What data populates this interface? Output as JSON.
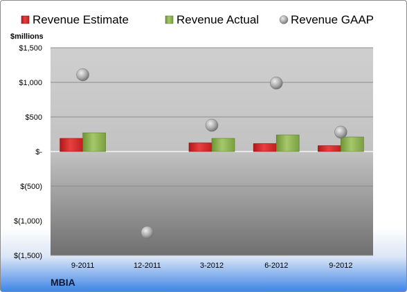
{
  "chart_data": {
    "type": "bar",
    "company": "MBIA",
    "unit_label": "$millions",
    "categories": [
      "9-2011",
      "12-2011",
      "3-2012",
      "6-2012",
      "9-2012"
    ],
    "series": [
      {
        "name": "Revenue Estimate",
        "kind": "bar",
        "color": "#d42a2a",
        "values": [
          190,
          null,
          125,
          115,
          85
        ]
      },
      {
        "name": "Revenue Actual",
        "kind": "bar",
        "color": "#8ab04a",
        "values": [
          270,
          null,
          190,
          240,
          210
        ]
      },
      {
        "name": "Revenue GAAP",
        "kind": "marker",
        "color": "#a6a6a6",
        "values": [
          1110,
          -1170,
          380,
          990,
          280
        ]
      }
    ],
    "ylim": [
      -1500,
      1500
    ],
    "yticks": [
      1500,
      1000,
      500,
      0,
      -500,
      -1000,
      -1500
    ],
    "ytick_labels": [
      "$1,500",
      "$1,000",
      "$500",
      "$-",
      "$(500)",
      "$(1,000)",
      "$(1,500)"
    ],
    "grid": true,
    "legend_position": "top"
  }
}
